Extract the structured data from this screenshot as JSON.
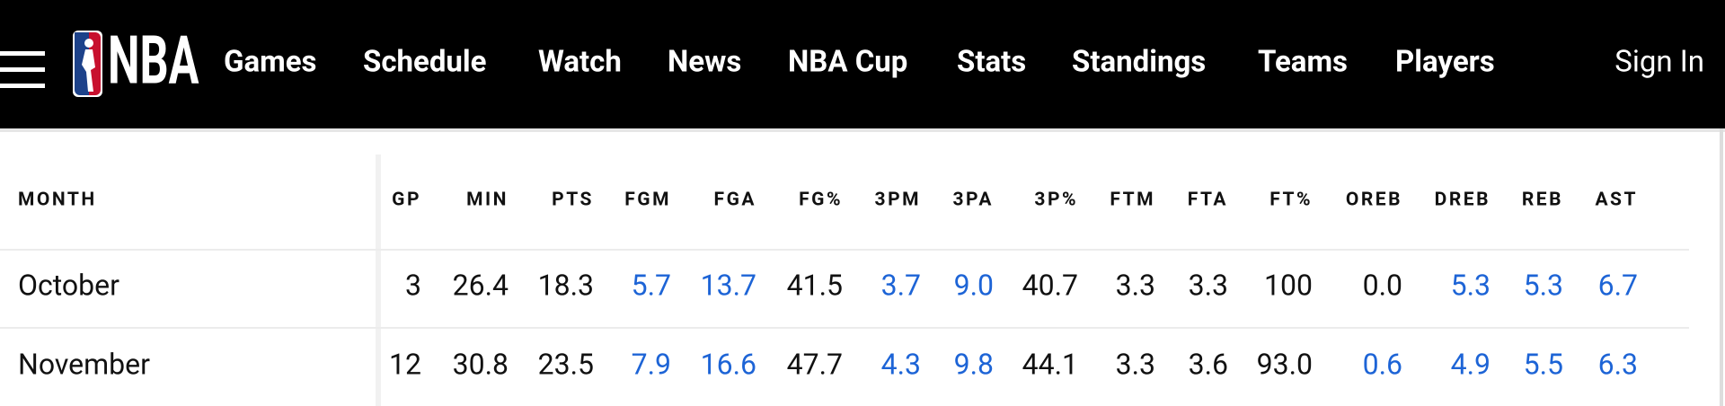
{
  "header": {
    "logo_text": "NBA",
    "nav": [
      "Games",
      "Schedule",
      "Watch",
      "News",
      "NBA Cup",
      "Stats",
      "Standings",
      "Teams",
      "Players"
    ],
    "sign_in": "Sign In"
  },
  "table": {
    "columns": [
      {
        "label": "MONTH"
      },
      {
        "label": "GP"
      },
      {
        "label": "MIN"
      },
      {
        "label": "PTS"
      },
      {
        "label": "FGM",
        "link": true
      },
      {
        "label": "FGA",
        "link": true
      },
      {
        "label": "FG%"
      },
      {
        "label": "3PM",
        "link": true
      },
      {
        "label": "3PA",
        "link": true
      },
      {
        "label": "3P%"
      },
      {
        "label": "FTM"
      },
      {
        "label": "FTA"
      },
      {
        "label": "FT%"
      },
      {
        "label": "OREB",
        "link": true
      },
      {
        "label": "DREB",
        "link": true
      },
      {
        "label": "REB",
        "link": true
      },
      {
        "label": "AST",
        "link": true
      }
    ],
    "rows": [
      [
        "October",
        "3",
        "26.4",
        "18.3",
        "5.7",
        "13.7",
        "41.5",
        "3.7",
        "9.0",
        "40.7",
        "3.3",
        "3.3",
        "100",
        "0.0",
        "5.3",
        "5.3",
        "6.7"
      ],
      [
        "November",
        "12",
        "30.8",
        "23.5",
        "7.9",
        "16.6",
        "47.7",
        "4.3",
        "9.8",
        "44.1",
        "3.3",
        "3.6",
        "93.0",
        "0.6",
        "4.9",
        "5.5",
        "6.3"
      ]
    ],
    "link_color": "#1d64d6"
  }
}
